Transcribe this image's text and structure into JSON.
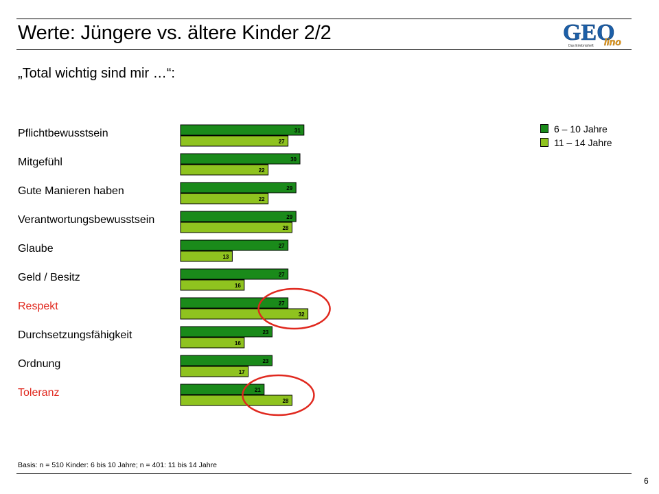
{
  "header": {
    "title": "Werte: Jüngere vs. ältere Kinder 2/2",
    "subtitle": "„Total wichtig sind mir …“:",
    "logo_text": "GEO",
    "logo_subtext": "lino",
    "logo_tagline": "Das Erlebnisheft"
  },
  "footer": {
    "footnote": "Basis: n = 510 Kinder: 6 bis 10 Jahre; n = 401: 11 bis 14 Jahre",
    "page_number": "6"
  },
  "colors": {
    "series_young": "#1a8a1a",
    "series_old": "#8fc31f",
    "highlight_label": "#e0281e",
    "highlight_ellipse": "#e0281e"
  },
  "chart_data": {
    "type": "bar",
    "orientation": "horizontal",
    "categories": [
      "Pflichtbewusstsein",
      "Mitgefühl",
      "Gute Manieren haben",
      "Verantwortungsbewusstsein",
      "Glaube",
      "Geld / Besitz",
      "Respekt",
      "Durchsetzungsfähigkeit",
      "Ordnung",
      "Toleranz"
    ],
    "highlighted_categories": [
      "Respekt",
      "Toleranz"
    ],
    "series": [
      {
        "name": "6 – 10 Jahre",
        "values": [
          31,
          30,
          29,
          29,
          27,
          27,
          27,
          23,
          23,
          21
        ]
      },
      {
        "name": "11 – 14 Jahre",
        "values": [
          27,
          22,
          22,
          28,
          13,
          16,
          32,
          16,
          17,
          28
        ]
      }
    ],
    "data_labels": true,
    "legend_position": "top-right",
    "grid": false,
    "xlim": [
      0,
      35
    ]
  }
}
